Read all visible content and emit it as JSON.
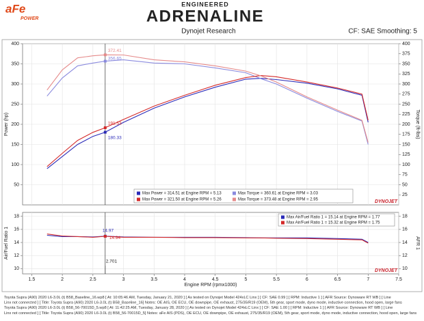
{
  "header": {
    "logo": "aFe",
    "logo_sub": "POWER",
    "tagline": "ENGINEERED",
    "title": "ADRENALINE",
    "subtitle": "Dynojet Research",
    "settings": "CF: SAE Smoothing: 5"
  },
  "watermark": "DYNOJET",
  "chart_data": [
    {
      "type": "line",
      "y_label": "Power (hp)",
      "y2_label": "Torque (ft-lbs)",
      "x": [
        1.75,
        2.0,
        2.25,
        2.5,
        2.701,
        3.0,
        3.5,
        4.0,
        4.5,
        5.0,
        5.25,
        5.5,
        6.0,
        6.5,
        6.9,
        7.0
      ],
      "xlim": [
        1.35,
        7.5
      ],
      "ylim": [
        0,
        400
      ],
      "yticks": [
        50,
        100,
        150,
        200,
        250,
        300,
        350,
        400
      ],
      "y2lim": [
        0,
        400
      ],
      "y2ticks": [
        25,
        50,
        75,
        100,
        125,
        150,
        175,
        200,
        225,
        250,
        275,
        300,
        325,
        350,
        375,
        400
      ],
      "grid": true,
      "series": [
        {
          "name": "Max Power = 314.51 at Engine RPM = 5.13",
          "color": "#2a2ab8",
          "values": [
            90,
            120,
            150,
            170,
            180.33,
            205,
            240,
            268,
            292,
            312,
            314,
            311,
            302,
            288,
            272,
            205
          ]
        },
        {
          "name": "Max Torque = 360.61 at Engine RPM = 3.03",
          "color": "#8a8ade",
          "axis": "y2",
          "values": [
            270,
            315,
            345,
            352,
            356.65,
            360,
            352,
            350,
            340,
            328,
            313,
            300,
            265,
            232,
            208,
            150
          ]
        },
        {
          "name": "Max Power = 321.50 at Engine RPM = 5.26",
          "color": "#d42a2a",
          "values": [
            95,
            128,
            160,
            180,
            191.53,
            212,
            245,
            272,
            297,
            316,
            321,
            318,
            305,
            290,
            275,
            210
          ]
        },
        {
          "name": "Max Torque = 373.48 at Engine RPM = 2.95",
          "color": "#e58a8a",
          "axis": "y2",
          "values": [
            285,
            335,
            365,
            370,
            372.41,
            372,
            360,
            355,
            345,
            332,
            320,
            305,
            268,
            235,
            210,
            155
          ]
        }
      ]
    },
    {
      "type": "line",
      "x_label": "Engine RPM (rpmx1000)",
      "y_label": "Air/Fuel Ratio 1",
      "y2_label": "AFR 1",
      "x": [
        1.75,
        2.0,
        2.25,
        2.5,
        2.701,
        3.0,
        3.5,
        4.0,
        4.5,
        5.0,
        5.25,
        5.5,
        6.0,
        6.5,
        6.9,
        7.0
      ],
      "xlim": [
        1.35,
        7.5
      ],
      "xticks": [
        1.5,
        2.0,
        2.5,
        3.0,
        3.5,
        4.0,
        4.5,
        5.0,
        5.5,
        6.0,
        6.5,
        7.0,
        7.5
      ],
      "ylim": [
        9.2,
        18.6
      ],
      "yticks": [
        10,
        12,
        14,
        16,
        18
      ],
      "y2lim": [
        9.2,
        18.6
      ],
      "y2ticks": [
        10,
        12,
        14,
        16,
        18
      ],
      "grid": true,
      "series": [
        {
          "name": "Max Air/Fuel Ratio 1 = 15.14 at Engine RPM = 1.77",
          "color": "#2a2ab8",
          "values": [
            15.1,
            14.9,
            14.9,
            14.85,
            14.97,
            14.85,
            14.8,
            14.8,
            14.8,
            14.75,
            14.7,
            14.7,
            14.7,
            14.6,
            14.5,
            14.0
          ]
        },
        {
          "name": "Max Air/Fuel Ratio 1 = 15.32 at Engine RPM = 1.75",
          "color": "#d42a2a",
          "values": [
            15.3,
            15.0,
            14.9,
            14.8,
            14.94,
            14.8,
            14.8,
            14.75,
            14.75,
            14.7,
            14.7,
            14.65,
            14.6,
            14.5,
            14.4,
            13.9
          ]
        }
      ]
    }
  ],
  "footer": [
    "Toyota Supra (A90) 2020 L6-3.0L (t) B58_Baseline_16.wp8 [ At: 10:05:46 AM, Tuesday, January 21, 2020 ] [ As tested on Dynojet Model 424xLC Linx ] [ CF: SAE 0.99 ] [ RPM: Inductive 1 ] [ AFR Source: Dynoware RT WB ] [ Line",
    "Linx not connected ] [ Title: Toyota Supra (A90) 2020 L6-3.0L (t) B58_Baseline_16] Notes: OE AIS, OE ECU, OE downpipe, OE exhaust, 275/35/R19 (OEM), 5th gear, sport mode, dyno mode, inductive connection, hood open, large fans",
    "Toyota Supra (A90) 2020 L6-3.0L (t) B58_56-70015D_5.wp8 [ At: 11:42:25 AM, Tuesday, January 28, 2020 ] [ As tested on Dynojet Model 424xLC Linx ] [ CF: SAE 1.00 ] [ RPM: Inductive 1 ] [ AFR Source: Dynoware RT WB ] [ Line",
    "Linx not connected ] [ Title: Toyota Supra (A90) 2020 L6-3.0L (t) B58_56-70015D_5] Notes: aFe AIS (PDS), OE ECU, OE downpipe, OE exhaust, 275/35/R19 (OEM), 5th gear, sport mode, dyno mode, inductive connection, hood open, large fans"
  ]
}
